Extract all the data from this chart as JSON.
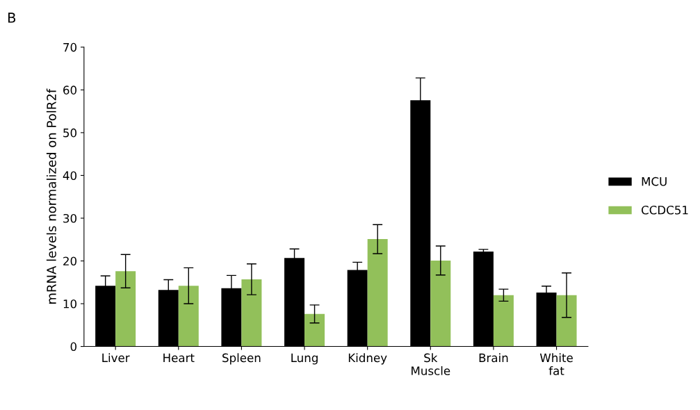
{
  "chart_data": {
    "type": "bar",
    "ylabel": "mRNA levels normalized on PolR2f",
    "annotations": [
      "B"
    ],
    "categories": [
      "Liver",
      "Heart",
      "Spleen",
      "Lung",
      "Kidney",
      "Sk\nMuscle",
      "Brain",
      "White\nfat"
    ],
    "series": [
      {
        "name": "MCU",
        "color": "#000000",
        "values": [
          14.2,
          13.2,
          13.6,
          20.7,
          17.9,
          57.6,
          22.2,
          12.6
        ],
        "errors": [
          2.3,
          2.4,
          3.0,
          2.1,
          1.8,
          5.2,
          0.5,
          1.5
        ]
      },
      {
        "name": "CCDC51",
        "color": "#92c05a",
        "values": [
          17.6,
          14.2,
          15.7,
          7.6,
          25.1,
          20.1,
          12.0,
          12.0
        ],
        "errors": [
          3.9,
          4.2,
          3.6,
          2.1,
          3.4,
          3.4,
          1.4,
          5.2
        ]
      }
    ],
    "ylim": [
      0,
      70
    ],
    "yticks": [
      0,
      10,
      20,
      30,
      40,
      50,
      60,
      70
    ],
    "grid": false,
    "legend": "right"
  }
}
